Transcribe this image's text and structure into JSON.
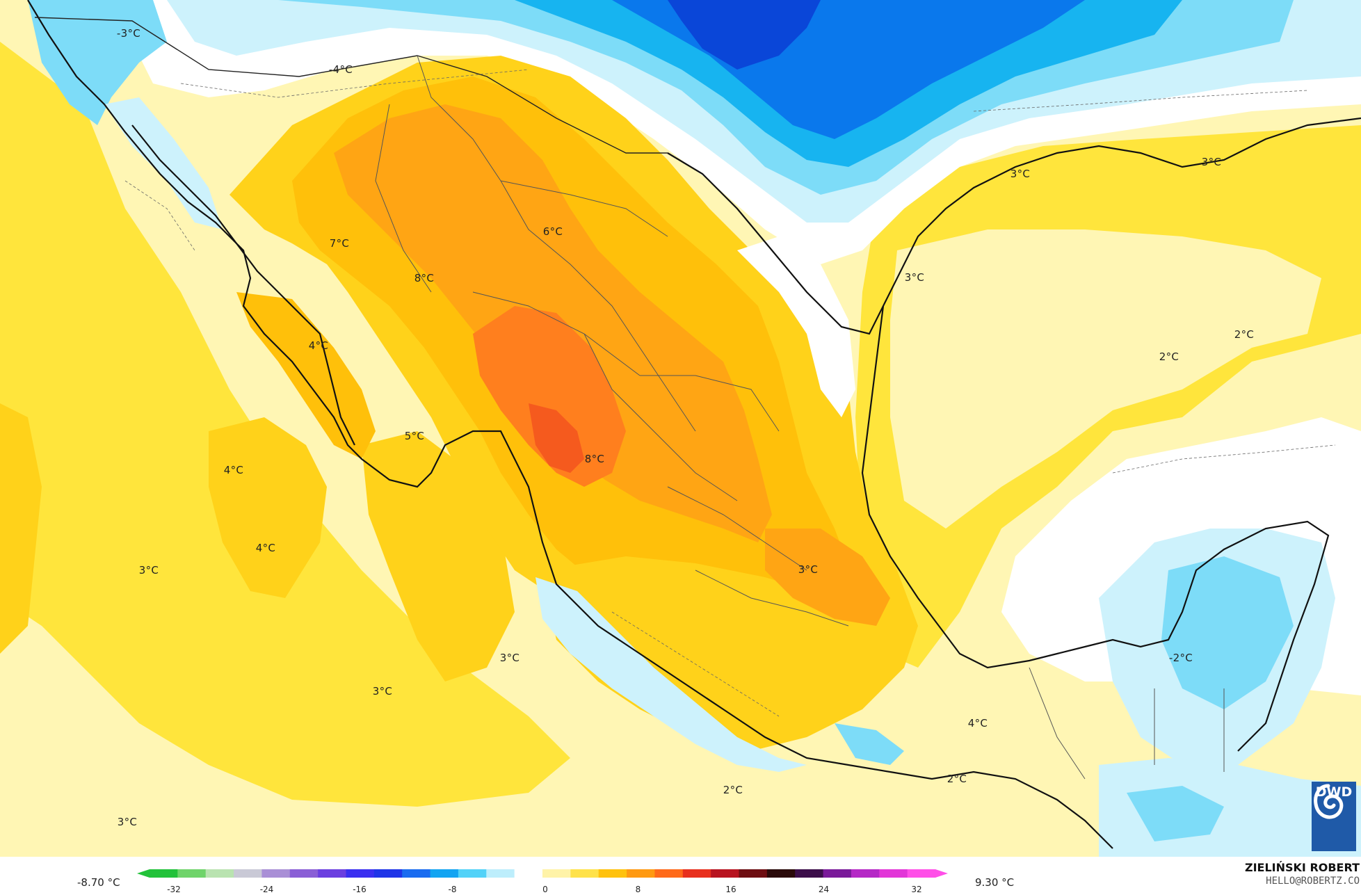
{
  "map": {
    "labels": [
      {
        "text": "-3°C",
        "key": "l1"
      },
      {
        "text": "-4°C",
        "key": "l2"
      },
      {
        "text": "7°C",
        "key": "l3"
      },
      {
        "text": "8°C",
        "key": "l4"
      },
      {
        "text": "6°C",
        "key": "l5"
      },
      {
        "text": "4°C",
        "key": "l6"
      },
      {
        "text": "5°C",
        "key": "l7"
      },
      {
        "text": "8°C",
        "key": "l8"
      },
      {
        "text": "4°C",
        "key": "l9"
      },
      {
        "text": "4°C",
        "key": "l10"
      },
      {
        "text": "3°C",
        "key": "l11"
      },
      {
        "text": "3°C",
        "key": "l12"
      },
      {
        "text": "3°C",
        "key": "l13"
      },
      {
        "text": "3°C",
        "key": "l14"
      },
      {
        "text": "3°C",
        "key": "l15"
      },
      {
        "text": "2°C",
        "key": "l16"
      },
      {
        "text": "2°C",
        "key": "l17"
      },
      {
        "text": "4°C",
        "key": "l18"
      },
      {
        "text": "3°C",
        "key": "l19"
      },
      {
        "text": "3°C",
        "key": "l20"
      },
      {
        "text": "2°C",
        "key": "l21"
      },
      {
        "text": "2°C",
        "key": "l22"
      },
      {
        "text": "-2°C",
        "key": "l23"
      },
      {
        "text": "3°C",
        "key": "l24"
      }
    ]
  },
  "legend": {
    "min_label": "-8.70 °C",
    "max_label": "9.30 °C",
    "ticks": [
      "-32",
      "-24",
      "-16",
      "-8",
      "0",
      "8",
      "16",
      "24",
      "32"
    ],
    "colors": [
      "#22c23a",
      "#6fd46a",
      "#b9e3b0",
      "#c9c9d6",
      "#a98fd6",
      "#8a5fd6",
      "#6b3fe0",
      "#3a2ff0",
      "#1f35e8",
      "#1a6cf0",
      "#12a4f2",
      "#52d2f8",
      "#bdeefc",
      "#ffffff",
      "#fff3a8",
      "#ffe24a",
      "#ffc20e",
      "#ff9a12",
      "#ff6a1a",
      "#e8301e",
      "#b81420",
      "#6e0e12",
      "#2a0a0a",
      "#3c0e4a",
      "#7a1a9a",
      "#b528c6",
      "#e236d8",
      "#ff4fe8"
    ]
  },
  "credit": {
    "name": "ZIELIŃSKI ROBERT",
    "email": "HELLO@ROBERTZ.CO"
  },
  "logo": {
    "text": "DWD"
  },
  "palette": {
    "ocean_pale": "#fff6b4",
    "yellow": "#ffe53c",
    "gold": "#ffd21a",
    "amber": "#ffc00a",
    "orange": "#ffa514",
    "deep_orange": "#ff7f1e",
    "red_orange": "#f55a1e",
    "white": "#ffffff",
    "ice": "#cdf2fc",
    "sky": "#7ddcf8",
    "cyan": "#17b4f0",
    "blue": "#0a78ec",
    "deep_blue": "#0a46d8",
    "coast": "#111111",
    "border": "#555555"
  }
}
